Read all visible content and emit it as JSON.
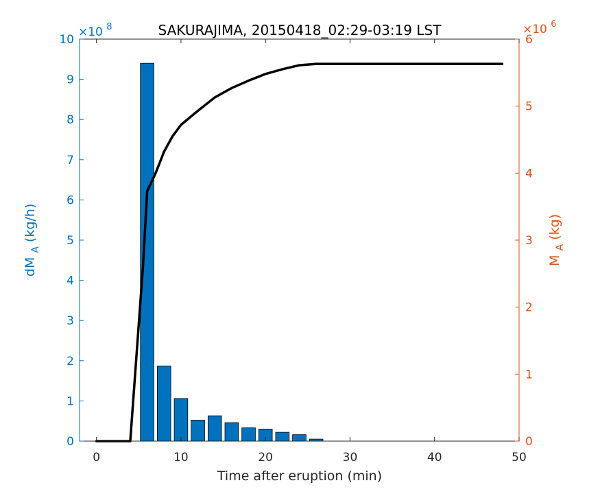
{
  "colors": {
    "left_axis": "#0072BD",
    "right_axis": "#D95319",
    "bar_fill": "#0072BD",
    "line": "#000000",
    "axis_box": "#262626"
  },
  "chart_data": {
    "type": "bar",
    "title": "SAKURAJIMA, 20150418_02:29-03:19 LST",
    "xlabel": "Time after eruption (min)",
    "ylabel_left": {
      "base": "dM",
      "sub": "A",
      "rest": " (kg/h)"
    },
    "ylabel_right": {
      "base": "M",
      "sub": "A",
      "rest": " (kg)"
    },
    "left_exponent": {
      "base": "×10",
      "power": "8"
    },
    "right_exponent": {
      "base": "×10",
      "power": "6"
    },
    "xlim": [
      -2,
      50
    ],
    "ylim_left": [
      0,
      10
    ],
    "ylim_right": [
      0,
      6
    ],
    "xticks": [
      0,
      10,
      20,
      30,
      40,
      50
    ],
    "yticks_left": [
      0,
      1,
      2,
      3,
      4,
      5,
      6,
      7,
      8,
      9,
      10
    ],
    "yticks_right": [
      0,
      1,
      2,
      3,
      4,
      5,
      6
    ],
    "grid": false,
    "bars": {
      "name": "dM_A",
      "axis": "left",
      "x": [
        0,
        2,
        4,
        6,
        8,
        10,
        12,
        14,
        16,
        18,
        20,
        22,
        24,
        26
      ],
      "values": [
        0,
        0,
        0,
        9.4,
        1.87,
        1.06,
        0.52,
        0.63,
        0.46,
        0.33,
        0.3,
        0.22,
        0.16,
        0.05
      ],
      "width": 1.6
    },
    "line": {
      "name": "M_A",
      "axis": "right",
      "x": [
        0,
        4,
        5.5,
        6,
        7,
        8,
        9,
        10,
        12,
        14,
        16,
        18,
        20,
        22,
        24,
        26,
        30,
        40,
        48
      ],
      "values": [
        0,
        0,
        2.6,
        3.73,
        4.0,
        4.32,
        4.55,
        4.72,
        4.93,
        5.13,
        5.27,
        5.38,
        5.48,
        5.55,
        5.61,
        5.63,
        5.63,
        5.63,
        5.63
      ]
    }
  }
}
